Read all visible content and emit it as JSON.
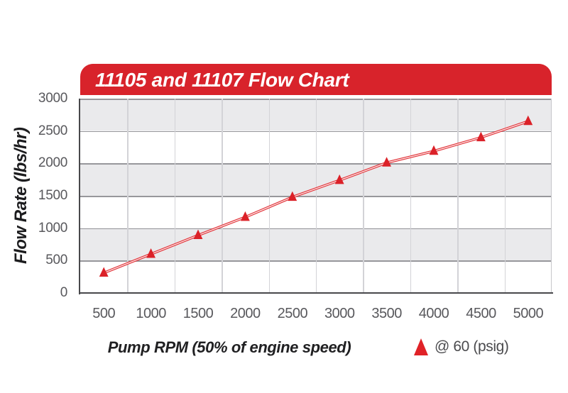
{
  "page": {
    "background": "#ffffff"
  },
  "header": {
    "bg_color": "#d8232b",
    "text_color": "#ffffff"
  },
  "chart_data": {
    "type": "line",
    "title": "11105 and 11107 Flow Chart",
    "xlabel": "Pump RPM (50% of engine speed)",
    "ylabel": "Flow Rate (lbs/hr)",
    "x": [
      500,
      1000,
      1500,
      2000,
      2500,
      3000,
      3500,
      4000,
      4500,
      5000
    ],
    "xtick_labels": [
      "500",
      "1000",
      "1500",
      "2000",
      "2500",
      "3000",
      "3500",
      "4000",
      "4500",
      "5000"
    ],
    "ytick_labels": [
      "3000",
      "2500",
      "2000",
      "1500",
      "1000",
      "500",
      "0"
    ],
    "ylim": [
      0,
      3000
    ],
    "ytick_step": 500,
    "series": [
      {
        "name": "@ 60 (psig)",
        "marker": "triangle",
        "color": "#e23339",
        "marker_color": "#db2128",
        "values": [
          310,
          600,
          890,
          1170,
          1480,
          1740,
          2010,
          2190,
          2400,
          2650
        ]
      }
    ],
    "legend": {
      "position": "bottom-right",
      "entries": [
        {
          "marker": "triangle-icon",
          "color": "#e02227",
          "label": "@ 60 (psig)"
        }
      ]
    },
    "grid": {
      "horizontal_lines": true,
      "vertical_lines": true,
      "row_band_colors": [
        "#eaeaec",
        "#ffffff"
      ]
    },
    "colors": {
      "band_gray": "#eaeaec",
      "h_gridline": "#97979b",
      "v_gridline": "#d3d3d7",
      "axis_line": "#48484b",
      "tick_text": "#58585c",
      "title_bar_red": "#d8232b"
    }
  }
}
